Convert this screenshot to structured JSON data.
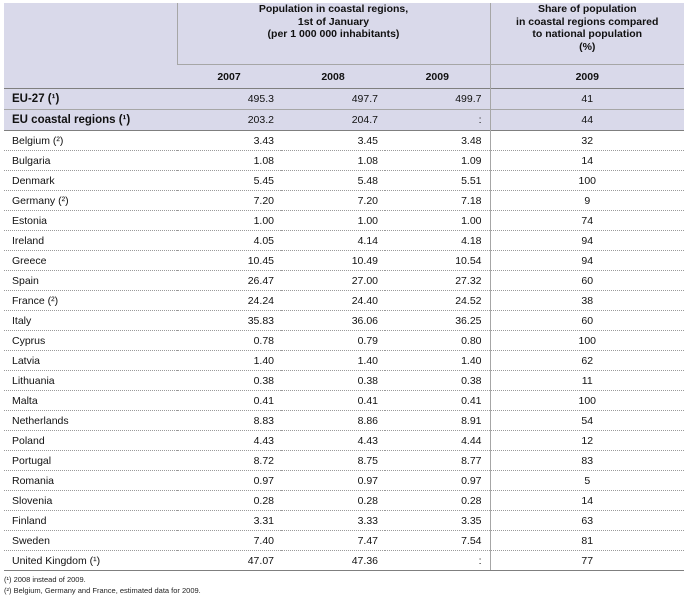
{
  "header": {
    "population_title": "Population in coastal regions,\n1st of January\n(per 1 000 000 inhabitants)",
    "share_title": "Share of population\nin coastal regions compared\nto national population\n(%)",
    "years": [
      "2007",
      "2008",
      "2009"
    ],
    "share_year": "2009"
  },
  "aggregates": [
    {
      "name": "EU-27 (¹)",
      "y2007": "495.3",
      "y2008": "497.7",
      "y2009": "499.7",
      "share": "41"
    },
    {
      "name": "EU coastal regions (¹)",
      "y2007": "203.2",
      "y2008": "204.7",
      "y2009": ":",
      "share": "44"
    }
  ],
  "rows": [
    {
      "name": "Belgium (²)",
      "y2007": "3.43",
      "y2008": "3.45",
      "y2009": "3.48",
      "share": "32"
    },
    {
      "name": "Bulgaria",
      "y2007": "1.08",
      "y2008": "1.08",
      "y2009": "1.09",
      "share": "14"
    },
    {
      "name": "Denmark",
      "y2007": "5.45",
      "y2008": "5.48",
      "y2009": "5.51",
      "share": "100"
    },
    {
      "name": "Germany (²)",
      "y2007": "7.20",
      "y2008": "7.20",
      "y2009": "7.18",
      "share": "9"
    },
    {
      "name": "Estonia",
      "y2007": "1.00",
      "y2008": "1.00",
      "y2009": "1.00",
      "share": "74"
    },
    {
      "name": "Ireland",
      "y2007": "4.05",
      "y2008": "4.14",
      "y2009": "4.18",
      "share": "94"
    },
    {
      "name": "Greece",
      "y2007": "10.45",
      "y2008": "10.49",
      "y2009": "10.54",
      "share": "94"
    },
    {
      "name": "Spain",
      "y2007": "26.47",
      "y2008": "27.00",
      "y2009": "27.32",
      "share": "60"
    },
    {
      "name": "France (²)",
      "y2007": "24.24",
      "y2008": "24.40",
      "y2009": "24.52",
      "share": "38"
    },
    {
      "name": "Italy",
      "y2007": "35.83",
      "y2008": "36.06",
      "y2009": "36.25",
      "share": "60"
    },
    {
      "name": "Cyprus",
      "y2007": "0.78",
      "y2008": "0.79",
      "y2009": "0.80",
      "share": "100"
    },
    {
      "name": "Latvia",
      "y2007": "1.40",
      "y2008": "1.40",
      "y2009": "1.40",
      "share": "62"
    },
    {
      "name": "Lithuania",
      "y2007": "0.38",
      "y2008": "0.38",
      "y2009": "0.38",
      "share": "11"
    },
    {
      "name": "Malta",
      "y2007": "0.41",
      "y2008": "0.41",
      "y2009": "0.41",
      "share": "100"
    },
    {
      "name": "Netherlands",
      "y2007": "8.83",
      "y2008": "8.86",
      "y2009": "8.91",
      "share": "54"
    },
    {
      "name": "Poland",
      "y2007": "4.43",
      "y2008": "4.43",
      "y2009": "4.44",
      "share": "12"
    },
    {
      "name": "Portugal",
      "y2007": "8.72",
      "y2008": "8.75",
      "y2009": "8.77",
      "share": "83"
    },
    {
      "name": "Romania",
      "y2007": "0.97",
      "y2008": "0.97",
      "y2009": "0.97",
      "share": "5"
    },
    {
      "name": "Slovenia",
      "y2007": "0.28",
      "y2008": "0.28",
      "y2009": "0.28",
      "share": "14"
    },
    {
      "name": "Finland",
      "y2007": "3.31",
      "y2008": "3.33",
      "y2009": "3.35",
      "share": "63"
    },
    {
      "name": "Sweden",
      "y2007": "7.40",
      "y2008": "7.47",
      "y2009": "7.54",
      "share": "81"
    },
    {
      "name": "United Kingdom (¹)",
      "y2007": "47.07",
      "y2008": "47.36",
      "y2009": ":",
      "share": "77"
    }
  ],
  "footnotes": [
    "(¹) 2008 instead of 2009.",
    "(²) Belgium, Germany and France, estimated data for 2009."
  ]
}
